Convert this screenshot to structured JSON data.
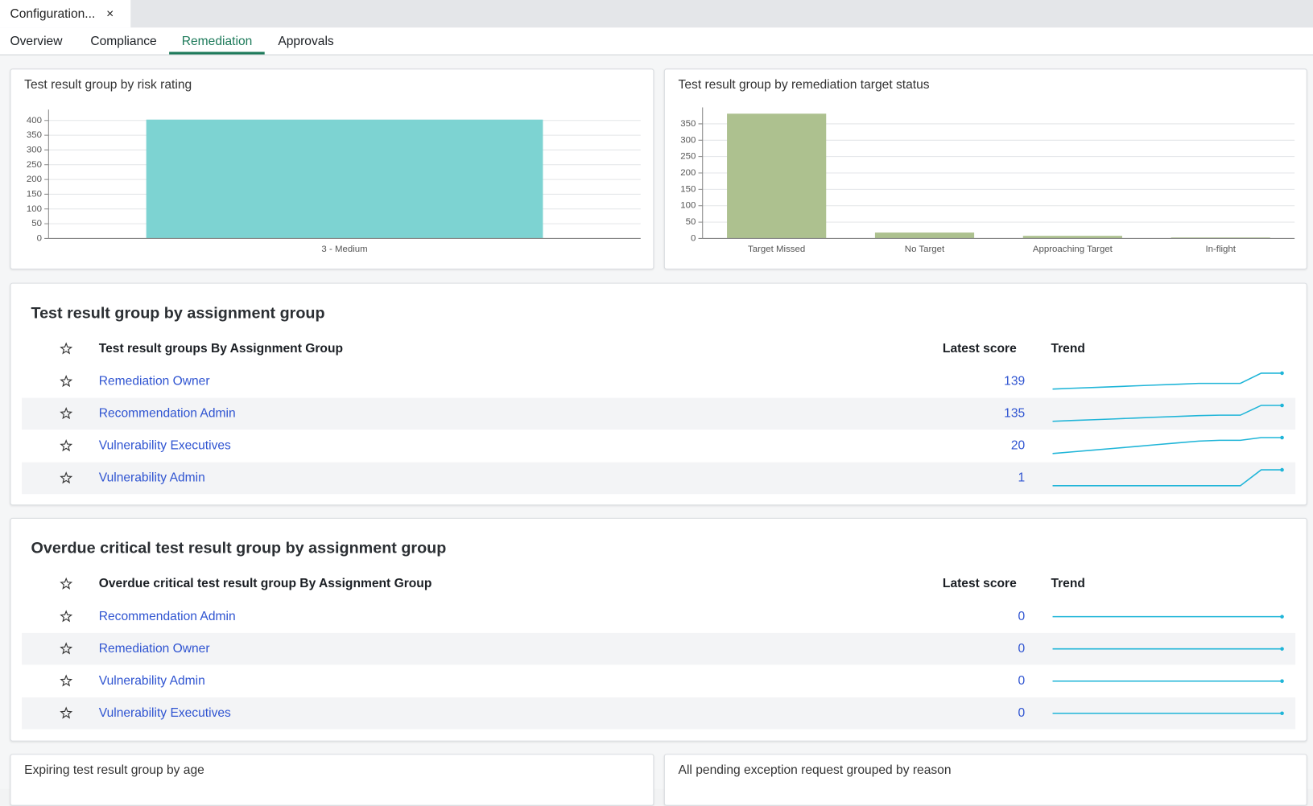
{
  "window_tab": {
    "title": "Configuration...",
    "close": "×"
  },
  "nav_tabs": [
    "Overview",
    "Compliance",
    "Remediation",
    "Approvals"
  ],
  "active_tab": 2,
  "chart_data": [
    {
      "type": "bar",
      "title": "Test result group by risk rating",
      "categories": [
        "3 - Medium"
      ],
      "values": [
        403
      ],
      "color": "#7dd3d2",
      "ylim": [
        0,
        420
      ],
      "yticks": [
        0,
        50,
        100,
        150,
        200,
        250,
        300,
        350,
        400
      ],
      "grid": true
    },
    {
      "type": "bar",
      "title": "Test result group by remediation target status",
      "categories": [
        "Target Missed",
        "No Target",
        "Approaching Target",
        "In-flight"
      ],
      "values": [
        381,
        18,
        8,
        3
      ],
      "color": "#adc18f",
      "ylim": [
        0,
        385
      ],
      "yticks": [
        0,
        50,
        100,
        150,
        200,
        250,
        300,
        350
      ],
      "grid": true
    }
  ],
  "tables": [
    {
      "title": "Test result group by assignment group",
      "columns": [
        "Test result groups By Assignment Group",
        "Latest score",
        "Trend"
      ],
      "rows": [
        {
          "name": "Remediation Owner",
          "score": 139,
          "trend": [
            100,
            102,
            104,
            106,
            108,
            110,
            112,
            114,
            114,
            114,
            139,
            139
          ]
        },
        {
          "name": "Recommendation Admin",
          "score": 135,
          "trend": [
            96,
            98,
            100,
            102,
            104,
            106,
            108,
            110,
            111,
            111,
            135,
            135
          ]
        },
        {
          "name": "Vulnerability Executives",
          "score": 20,
          "trend": [
            2,
            4,
            6,
            8,
            10,
            12,
            14,
            16,
            17,
            17,
            20,
            20
          ]
        },
        {
          "name": "Vulnerability Admin",
          "score": 1,
          "trend": [
            0,
            0,
            0,
            0,
            0,
            0,
            0,
            0,
            0,
            0,
            1,
            1
          ]
        }
      ]
    },
    {
      "title": "Overdue critical test result group by assignment group",
      "columns": [
        "Overdue critical test result group By Assignment Group",
        "Latest score",
        "Trend"
      ],
      "rows": [
        {
          "name": "Recommendation Admin",
          "score": 0,
          "trend": [
            0,
            0,
            0,
            0,
            0,
            0,
            0,
            0,
            0,
            0,
            0,
            0
          ]
        },
        {
          "name": "Remediation Owner",
          "score": 0,
          "trend": [
            0,
            0,
            0,
            0,
            0,
            0,
            0,
            0,
            0,
            0,
            0,
            0
          ]
        },
        {
          "name": "Vulnerability Admin",
          "score": 0,
          "trend": [
            0,
            0,
            0,
            0,
            0,
            0,
            0,
            0,
            0,
            0,
            0,
            0
          ]
        },
        {
          "name": "Vulnerability Executives",
          "score": 0,
          "trend": [
            0,
            0,
            0,
            0,
            0,
            0,
            0,
            0,
            0,
            0,
            0,
            0
          ]
        }
      ]
    }
  ],
  "bottom_cards": [
    "Expiring test result group by age",
    "All pending exception request grouped by reason"
  ]
}
